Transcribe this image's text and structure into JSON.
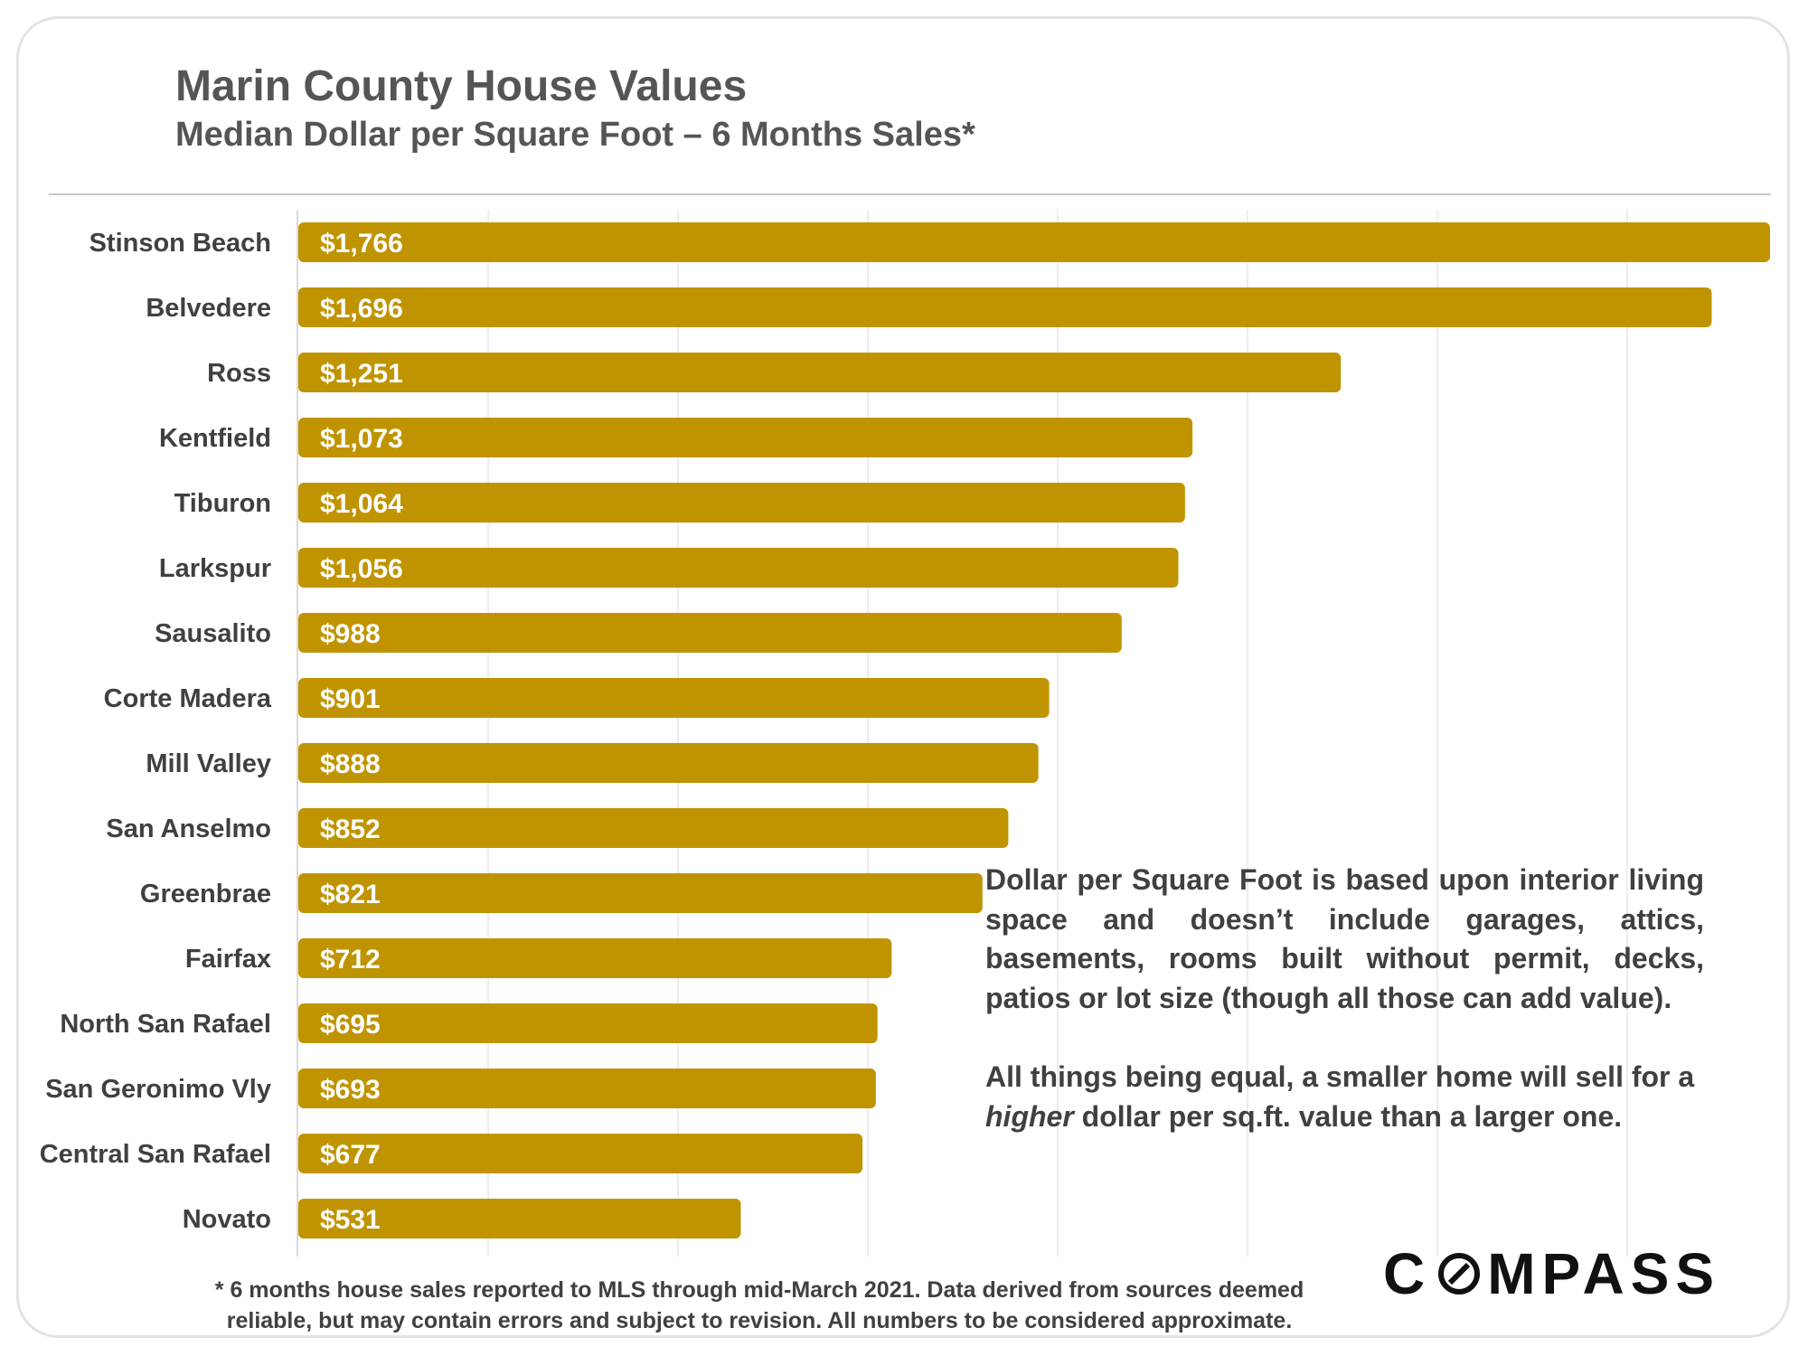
{
  "header": {
    "title": "Marin County House Values",
    "subtitle": "Median Dollar per Square Foot – 6 Months Sales*"
  },
  "notes": {
    "note1": "Dollar per Square Foot is based upon interior living space and doesn’t include garages, attics, basements, rooms built without permit, decks, patios or lot size (though all those can add value).",
    "note2_before": "All things being equal, a smaller home will sell for a ",
    "note2_emphasis": "higher",
    "note2_after": " dollar per sq.ft. value than a larger one."
  },
  "footnote": {
    "line1": "* 6 months house sales reported to MLS through mid-March 2021. Data derived from sources deemed",
    "line2": "reliable, but may contain errors and subject to revision. All numbers to be considered approximate."
  },
  "logo": {
    "before": "C",
    "after": "MPASS"
  },
  "colors": {
    "bar": "#C09400",
    "bar_label": "#ffffff",
    "category_label": "#404040",
    "gridline": "#ececec",
    "text": "#404040"
  },
  "chart_data": {
    "type": "bar",
    "orientation": "horizontal",
    "categories": [
      "Stinson Beach",
      "Belvedere",
      "Ross",
      "Kentfield",
      "Tiburon",
      "Larkspur",
      "Sausalito",
      "Corte Madera",
      "Mill Valley",
      "San Anselmo",
      "Greenbrae",
      "Fairfax",
      "North San Rafael",
      "San Geronimo Vly",
      "Central San Rafael",
      "Novato"
    ],
    "values": [
      1766,
      1696,
      1251,
      1073,
      1064,
      1056,
      988,
      901,
      888,
      852,
      821,
      712,
      695,
      693,
      677,
      531
    ],
    "value_labels": [
      "$1,766",
      "$1,696",
      "$1,251",
      "$1,073",
      "$1,064",
      "$1,056",
      "$988",
      "$901",
      "$888",
      "$852",
      "$821",
      "$712",
      "$695",
      "$693",
      "$677",
      "$531"
    ],
    "xlim": [
      0,
      1766
    ],
    "grid": true,
    "legend": "none"
  }
}
